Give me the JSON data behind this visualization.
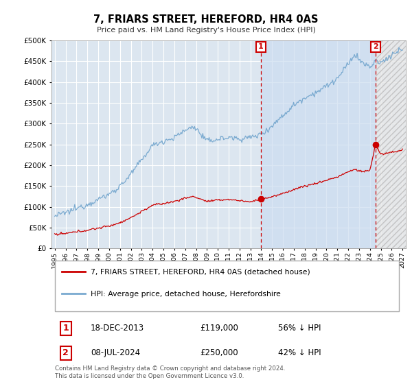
{
  "title": "7, FRIARS STREET, HEREFORD, HR4 0AS",
  "subtitle": "Price paid vs. HM Land Registry's House Price Index (HPI)",
  "background_color": "#ffffff",
  "plot_bg_color": "#dce6f0",
  "grid_color": "#ffffff",
  "ylim": [
    0,
    500000
  ],
  "yticks": [
    0,
    50000,
    100000,
    150000,
    200000,
    250000,
    300000,
    350000,
    400000,
    450000,
    500000
  ],
  "xlim_start": 1994.7,
  "xlim_end": 2027.3,
  "hpi_color": "#7aaad0",
  "price_color": "#cc0000",
  "marker1_date": 2013.97,
  "marker1_price": 119000,
  "marker2_date": 2024.52,
  "marker2_price": 250000,
  "legend_label1": "7, FRIARS STREET, HEREFORD, HR4 0AS (detached house)",
  "legend_label2": "HPI: Average price, detached house, Herefordshire",
  "transaction1_label": "1",
  "transaction1_date": "18-DEC-2013",
  "transaction1_price": "£119,000",
  "transaction1_pct": "56% ↓ HPI",
  "transaction2_label": "2",
  "transaction2_date": "08-JUL-2024",
  "transaction2_price": "£250,000",
  "transaction2_pct": "42% ↓ HPI",
  "footer": "Contains HM Land Registry data © Crown copyright and database right 2024.\nThis data is licensed under the Open Government Licence v3.0.",
  "vline_color": "#cc0000",
  "hatch_color": "#aaaaaa",
  "hatch_bg": "#e8e8e8",
  "highlight_bg": "#ccddf0"
}
